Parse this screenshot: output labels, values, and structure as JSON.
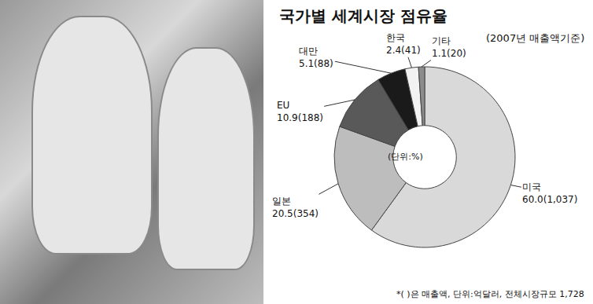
{
  "chart_data": {
    "type": "pie",
    "title": "국가별 세계시장 점유율",
    "subtitle": "(2007년 매출액기준)",
    "center_text": "(단위:%)",
    "note": "*( )은 매출액, 단위:억달러, 전체시장규모 1,728",
    "categories": [
      "미국",
      "일본",
      "EU",
      "대만",
      "한국",
      "기타"
    ],
    "values": [
      60.0,
      20.5,
      10.9,
      5.1,
      2.4,
      1.1
    ],
    "value_labels": [
      "60.0(1,037)",
      "20.5(354)",
      "10.9(188)",
      "5.1(88)",
      "2.4(41)",
      "1.1(20)"
    ],
    "colors": [
      "#d9d9d9",
      "#bdbdbd",
      "#595959",
      "#1a1a1a",
      "#f2f2f2",
      "#8c8c8c"
    ],
    "data_labels": true
  }
}
